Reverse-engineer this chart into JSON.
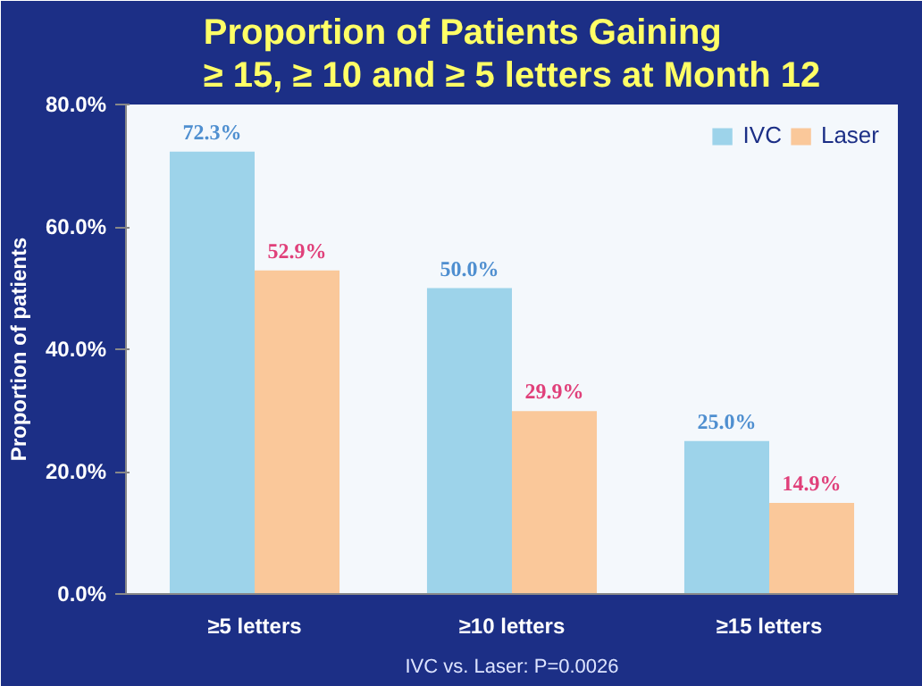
{
  "chart_data": {
    "type": "bar",
    "title": "Proportion of Patients Gaining\n≥ 15, ≥ 10 and ≥ 5 letters at Month 12",
    "ylabel": "Proportion of patients",
    "categories": [
      "≥5 letters",
      "≥10 letters",
      "≥15 letters"
    ],
    "series": [
      {
        "name": "IVC",
        "color": "#9dd3ea",
        "values": [
          72.3,
          50.0,
          25.0
        ]
      },
      {
        "name": "Laser",
        "color": "#fac89a",
        "values": [
          52.9,
          29.9,
          14.9
        ]
      }
    ],
    "ylim": [
      0,
      80
    ],
    "yticks": [
      {
        "value": 0,
        "label": "0.0%"
      },
      {
        "value": 20,
        "label": "20.0%"
      },
      {
        "value": 40,
        "label": "40.0%"
      },
      {
        "value": 60,
        "label": "60.0%"
      },
      {
        "value": 80,
        "label": "80.0%"
      }
    ],
    "value_labels": [
      [
        "72.3%",
        "50.0%",
        "25.0%"
      ],
      [
        "52.9%",
        "29.9%",
        "14.9%"
      ]
    ],
    "legend": "top right",
    "grid": false,
    "annotations": [
      "IVC vs. Laser: P=0.0026"
    ]
  }
}
